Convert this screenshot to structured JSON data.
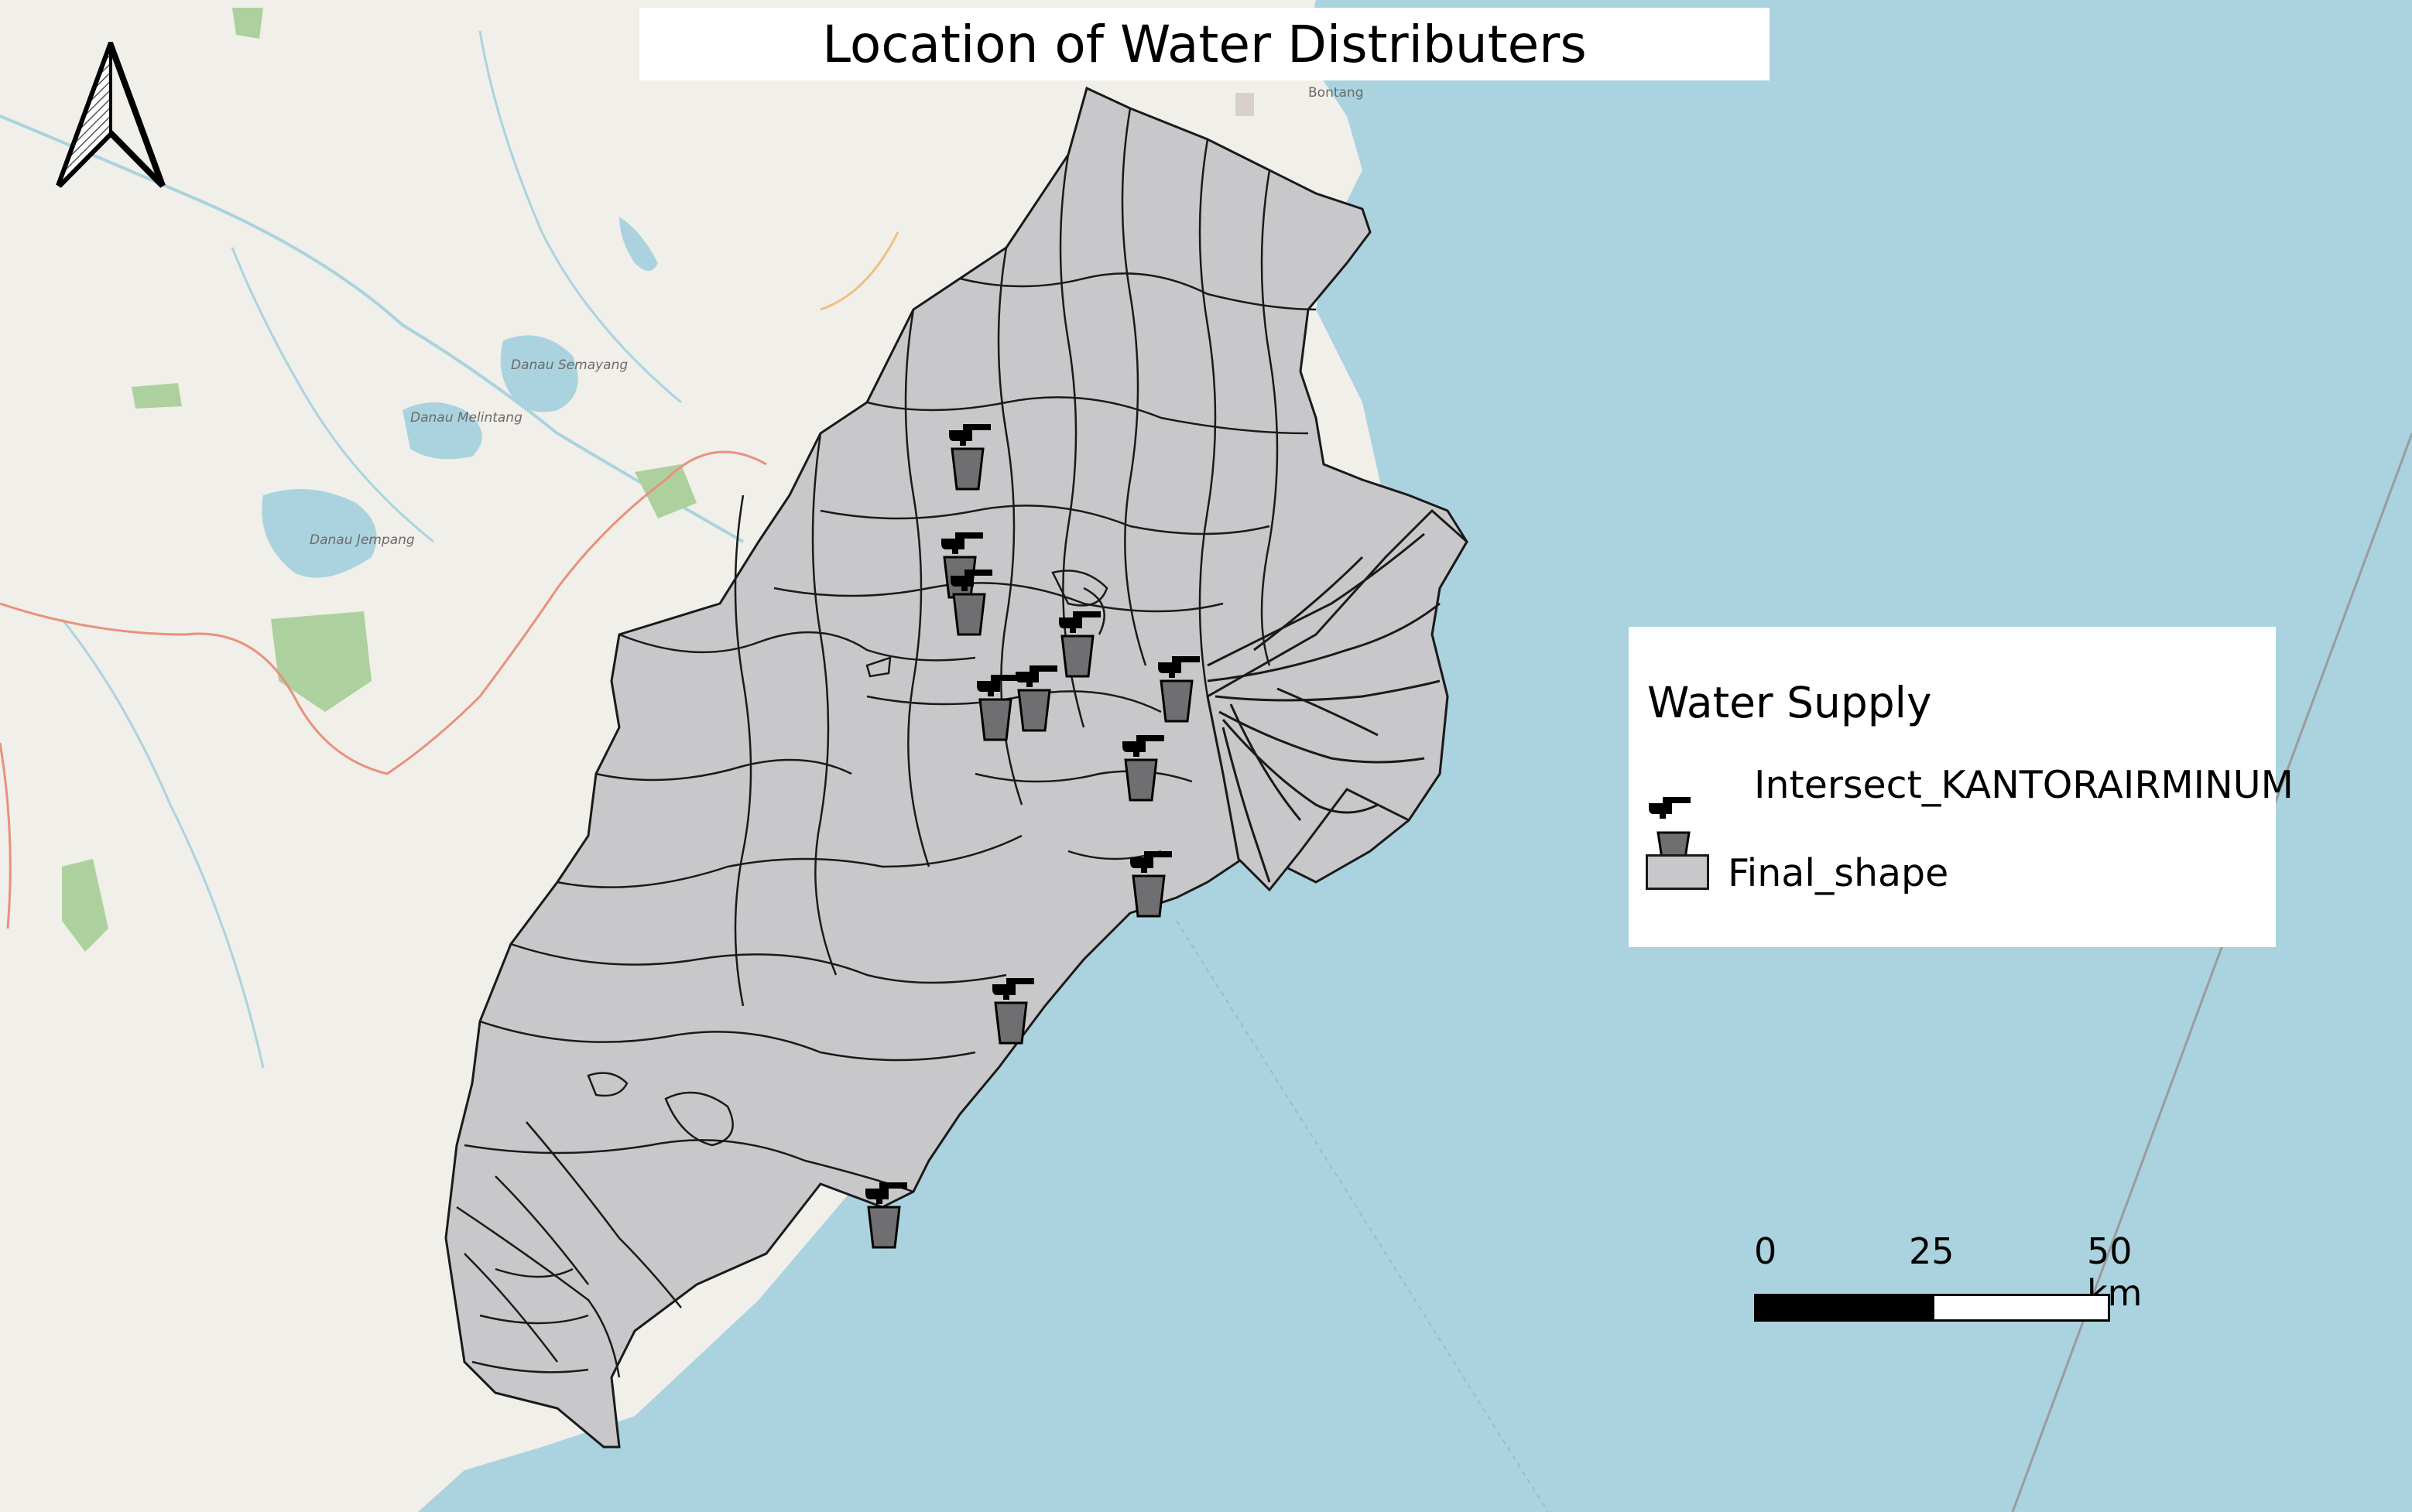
{
  "map": {
    "title": "Location of Water Distributers",
    "basemap_labels": {
      "city": "Bontang",
      "lake_1": "Danau Semayang",
      "lake_2": "Danau Melintang",
      "lake_3": "Danau Jempang"
    },
    "colors": {
      "sea": "#aad3df",
      "land": "#f1efe9",
      "polygon_fill": "#c8c7ca",
      "polygon_stroke": "#1a1a1a",
      "bucket_fill": "#6f6f71",
      "green_area": "#add19e",
      "admin_boundary": "#e8917c"
    }
  },
  "legend": {
    "title": "Water Supply",
    "items": [
      {
        "label": "Intersect_KANTORAIRMINUM",
        "icon": "water-tap-icon"
      },
      {
        "label": "Final_shape",
        "icon": "polygon-swatch-icon"
      }
    ]
  },
  "scalebar": {
    "labels": [
      "0",
      "25",
      "50 km"
    ]
  },
  "north_arrow": {
    "icon": "north-arrow-icon"
  }
}
